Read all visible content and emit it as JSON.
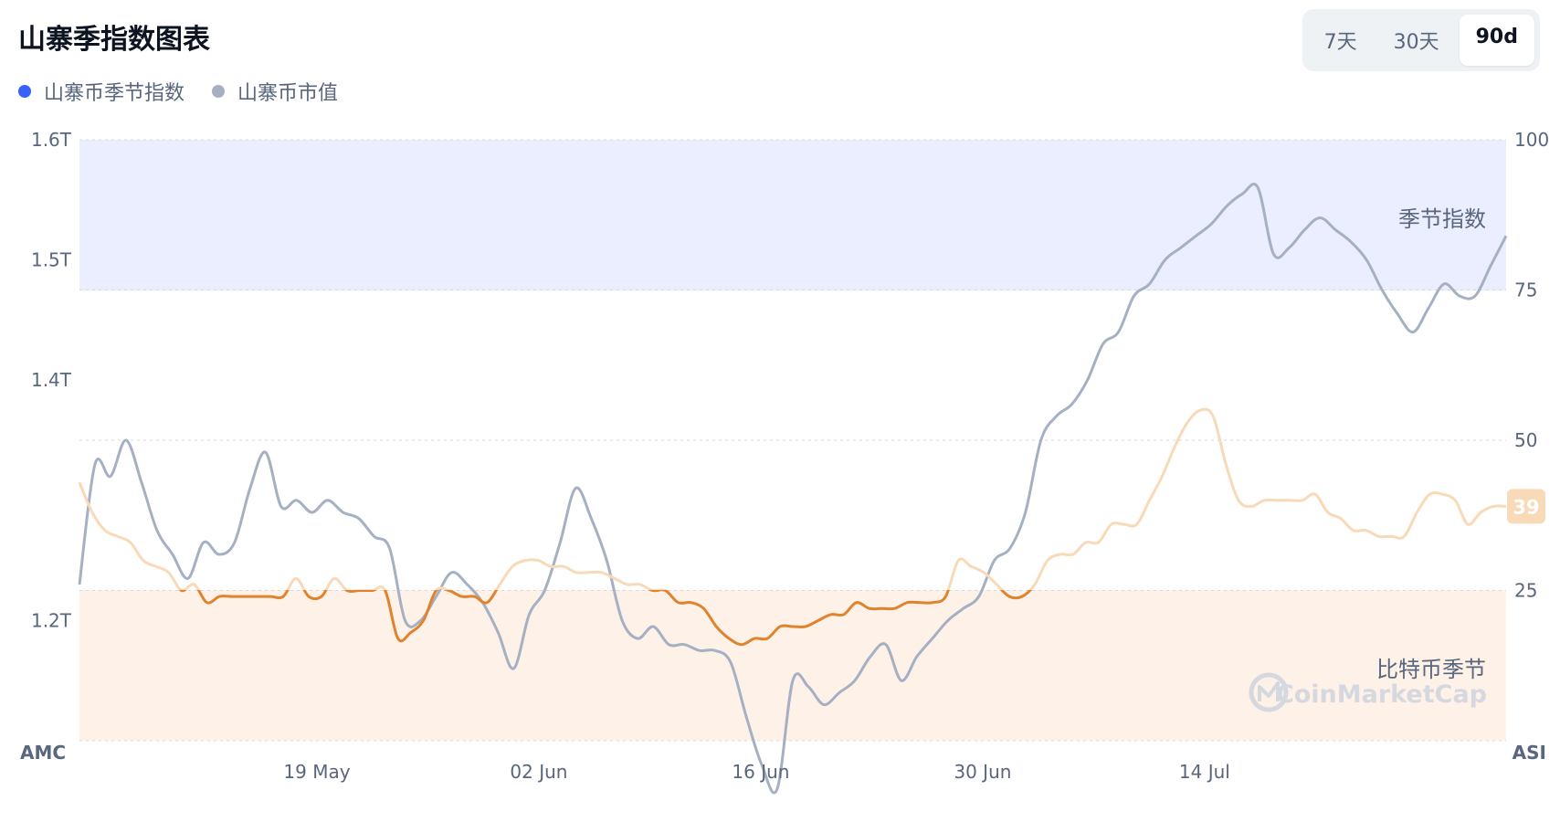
{
  "header": {
    "title": "山寨季指数图表"
  },
  "range_selector": {
    "options": [
      "7天",
      "30天",
      "90d"
    ],
    "active": "90d"
  },
  "legend": [
    {
      "label": "山寨币季节指数",
      "color": "#3861fb"
    },
    {
      "label": "山寨币市值",
      "color": "#a6b0c3"
    }
  ],
  "watermark": "CoinMarketCap",
  "chart_data": {
    "type": "line",
    "x_axis": {
      "ticks": [
        "19 May",
        "02 Jun",
        "16 Jun",
        "30 Jun",
        "14 Jul"
      ]
    },
    "y_left": {
      "name": "AMC",
      "range": [
        1.1,
        1.6
      ],
      "tick_values": [
        1.2,
        1.4,
        1.5,
        1.6
      ],
      "tick_labels": [
        "1.2T",
        "1.4T",
        "1.5T",
        "1.6T"
      ],
      "unit": "T USD"
    },
    "y_right": {
      "name": "ASI",
      "range": [
        0,
        100
      ],
      "ticks": [
        25,
        50,
        75,
        100
      ]
    },
    "zones": [
      {
        "label": "季节指数",
        "from": 75,
        "to": 100,
        "color": "#eaeefe"
      },
      {
        "label": "比特币季节",
        "from": 0,
        "to": 25,
        "color": "#fdf1e8"
      }
    ],
    "current_value_badge": "39",
    "grid": true,
    "series": [
      {
        "name": "山寨币季节指数",
        "axis": "right",
        "color_above": "#f8d9b8",
        "color_below": "#e0832e",
        "values": [
          43,
          38,
          35,
          34,
          33,
          30,
          29,
          28,
          25,
          26,
          23,
          24,
          24,
          24,
          24,
          24,
          24,
          27,
          24,
          24,
          27,
          25,
          25,
          25,
          25,
          17,
          18,
          20,
          25,
          25,
          24,
          24,
          23,
          26,
          29,
          30,
          30,
          29,
          29,
          28,
          28,
          28,
          27,
          26,
          26,
          25,
          25,
          23,
          23,
          22,
          19,
          17,
          16,
          17,
          17,
          19,
          19,
          19,
          20,
          21,
          21,
          23,
          22,
          22,
          22,
          23,
          23,
          23,
          24,
          30,
          29,
          28,
          26,
          24,
          24,
          26,
          30,
          31,
          31,
          33,
          33,
          36,
          36,
          36,
          40,
          44,
          49,
          53,
          55,
          54,
          46,
          40,
          39,
          40,
          40,
          40,
          40,
          41,
          38,
          37,
          35,
          35,
          34,
          34,
          34,
          38,
          41,
          41,
          40,
          36,
          38,
          39,
          39
        ]
      },
      {
        "name": "山寨币市值",
        "axis": "left",
        "color": "#a6b0c3",
        "values": [
          1.23,
          1.33,
          1.32,
          1.35,
          1.315,
          1.275,
          1.255,
          1.235,
          1.265,
          1.255,
          1.265,
          1.31,
          1.34,
          1.295,
          1.3,
          1.29,
          1.3,
          1.29,
          1.285,
          1.27,
          1.26,
          1.2,
          1.2,
          1.22,
          1.24,
          1.23,
          1.215,
          1.19,
          1.16,
          1.205,
          1.225,
          1.265,
          1.31,
          1.285,
          1.25,
          1.2,
          1.185,
          1.195,
          1.18,
          1.18,
          1.175,
          1.175,
          1.165,
          1.12,
          1.08,
          1.06,
          1.15,
          1.145,
          1.13,
          1.14,
          1.15,
          1.17,
          1.18,
          1.15,
          1.17,
          1.185,
          1.2,
          1.21,
          1.22,
          1.25,
          1.26,
          1.29,
          1.35,
          1.37,
          1.38,
          1.4,
          1.43,
          1.44,
          1.47,
          1.48,
          1.5,
          1.51,
          1.52,
          1.53,
          1.545,
          1.555,
          1.56,
          1.505,
          1.51,
          1.525,
          1.535,
          1.525,
          1.515,
          1.5,
          1.475,
          1.455,
          1.44,
          1.46,
          1.48,
          1.47,
          1.47,
          1.495,
          1.52
        ]
      }
    ]
  }
}
